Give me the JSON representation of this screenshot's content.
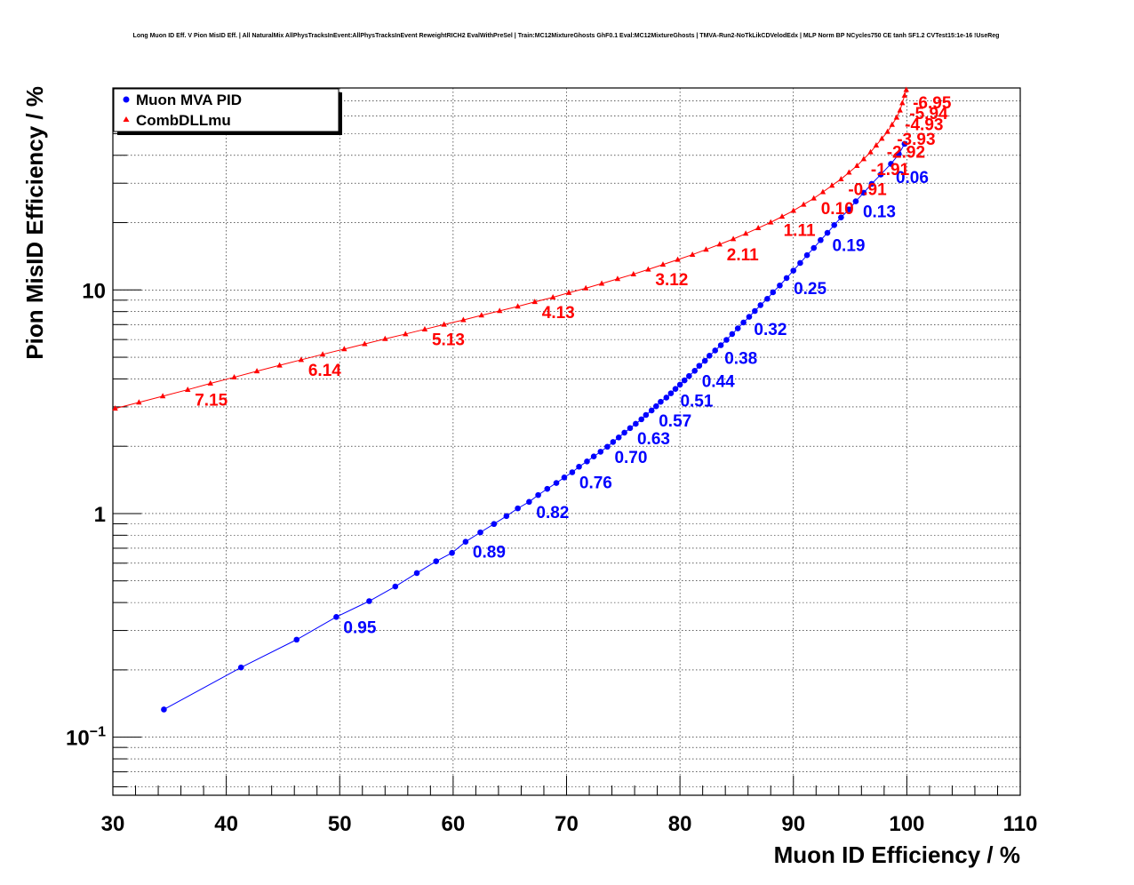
{
  "chart_data": {
    "type": "line",
    "title": "Long Muon ID Eff. V Pion MisID Eff. | All NaturalMix AllPhysTracksInEvent:AllPhysTracksInEvent ReweightRICH2 EvalWithPreSel | Train:MC12MixtureGhosts GhF0.1 Eval:MC12MixtureGhosts | TMVA-Run2-NoTkLikCDVelodEdx | MLP Norm BP NCycles750 CE tanh SF1.2 CVTest15:1e-16 !UseReg",
    "xlabel": "Muon ID Efficiency / %",
    "ylabel": "Pion MisID Efficiency / %",
    "xlim": [
      30,
      110
    ],
    "ylim": [
      0.055,
      80
    ],
    "y_scale": "log",
    "grid": true,
    "legend_position": "top-left",
    "x_ticks": [
      "30",
      "40",
      "50",
      "60",
      "70",
      "80",
      "90",
      "100",
      "110"
    ],
    "y_ticks": [
      {
        "value": 0.1,
        "mantissa": "10",
        "exponent": "−1"
      },
      {
        "value": 1,
        "mantissa": "1",
        "exponent": ""
      },
      {
        "value": 10,
        "mantissa": "10",
        "exponent": ""
      }
    ],
    "series": [
      {
        "name": "Muon MVA PID",
        "color": "#0000ff",
        "marker": "circle",
        "points": [
          [
            34.5,
            0.133
          ],
          [
            41.3,
            0.205
          ],
          [
            46.2,
            0.273
          ],
          [
            49.7,
            0.345
          ],
          [
            52.6,
            0.406
          ],
          [
            54.9,
            0.472
          ],
          [
            56.8,
            0.542
          ],
          [
            58.5,
            0.612
          ],
          [
            59.9,
            0.667
          ],
          [
            61.1,
            0.748
          ],
          [
            62.4,
            0.824
          ],
          [
            63.6,
            0.898
          ],
          [
            64.7,
            0.974
          ],
          [
            65.7,
            1.055
          ],
          [
            66.7,
            1.128
          ],
          [
            67.5,
            1.21
          ],
          [
            68.3,
            1.29
          ],
          [
            69.1,
            1.37
          ],
          [
            69.8,
            1.45
          ],
          [
            70.5,
            1.53
          ],
          [
            71.1,
            1.62
          ],
          [
            71.8,
            1.71
          ],
          [
            72.4,
            1.8
          ],
          [
            73.0,
            1.89
          ],
          [
            73.6,
            1.99
          ],
          [
            74.1,
            2.09
          ],
          [
            74.6,
            2.19
          ],
          [
            75.1,
            2.3
          ],
          [
            75.6,
            2.41
          ],
          [
            76.1,
            2.52
          ],
          [
            76.6,
            2.64
          ],
          [
            77.0,
            2.76
          ],
          [
            77.5,
            2.89
          ],
          [
            77.9,
            3.02
          ],
          [
            78.3,
            3.16
          ],
          [
            78.8,
            3.3
          ],
          [
            79.2,
            3.45
          ],
          [
            79.6,
            3.61
          ],
          [
            80.0,
            3.77
          ],
          [
            80.4,
            3.94
          ],
          [
            80.8,
            4.12
          ],
          [
            81.3,
            4.35
          ],
          [
            81.7,
            4.58
          ],
          [
            82.2,
            4.82
          ],
          [
            82.6,
            5.08
          ],
          [
            83.1,
            5.36
          ],
          [
            83.6,
            5.66
          ],
          [
            84.1,
            5.98
          ],
          [
            84.6,
            6.35
          ],
          [
            85.1,
            6.73
          ],
          [
            85.6,
            7.15
          ],
          [
            86.1,
            7.58
          ],
          [
            86.6,
            8.05
          ],
          [
            87.1,
            8.55
          ],
          [
            87.7,
            9.13
          ],
          [
            88.2,
            9.76
          ],
          [
            88.8,
            10.47
          ],
          [
            89.4,
            11.3
          ],
          [
            90.0,
            12.2
          ],
          [
            90.6,
            13.2
          ],
          [
            91.2,
            14.3
          ],
          [
            91.8,
            15.4
          ],
          [
            92.4,
            16.7
          ],
          [
            93.0,
            18.0
          ],
          [
            93.6,
            19.5
          ],
          [
            94.2,
            21.1
          ],
          [
            94.9,
            22.9
          ],
          [
            95.5,
            24.9
          ],
          [
            96.2,
            27.2
          ],
          [
            96.9,
            29.8
          ],
          [
            97.7,
            32.8
          ],
          [
            98.6,
            36.6
          ],
          [
            99.3,
            40.5
          ],
          [
            99.8,
            45.0
          ]
        ],
        "labels": [
          {
            "text": "0.95",
            "x": 49.7,
            "y": 0.345
          },
          {
            "text": "0.89",
            "x": 61.1,
            "y": 0.748
          },
          {
            "text": "0.82",
            "x": 66.7,
            "y": 1.128
          },
          {
            "text": "0.76",
            "x": 70.5,
            "y": 1.53
          },
          {
            "text": "0.70",
            "x": 73.6,
            "y": 1.99
          },
          {
            "text": "0.63",
            "x": 75.6,
            "y": 2.41
          },
          {
            "text": "0.57",
            "x": 77.5,
            "y": 2.89
          },
          {
            "text": "0.51",
            "x": 79.4,
            "y": 3.55
          },
          {
            "text": "0.44",
            "x": 81.3,
            "y": 4.35
          },
          {
            "text": "0.38",
            "x": 83.3,
            "y": 5.5
          },
          {
            "text": "0.32",
            "x": 85.9,
            "y": 7.4
          },
          {
            "text": "0.25",
            "x": 89.4,
            "y": 11.3
          },
          {
            "text": "0.19",
            "x": 92.8,
            "y": 17.6
          },
          {
            "text": "0.13",
            "x": 95.5,
            "y": 24.9
          },
          {
            "text": "0.06",
            "x": 98.4,
            "y": 35.5
          }
        ]
      },
      {
        "name": "CombDLLmu",
        "color": "#ff0000",
        "marker": "triangle",
        "points": [
          [
            30.2,
            2.95
          ],
          [
            32.3,
            3.14
          ],
          [
            34.4,
            3.35
          ],
          [
            36.6,
            3.58
          ],
          [
            38.6,
            3.82
          ],
          [
            40.7,
            4.07
          ],
          [
            42.7,
            4.33
          ],
          [
            44.7,
            4.6
          ],
          [
            46.6,
            4.87
          ],
          [
            48.5,
            5.15
          ],
          [
            50.4,
            5.44
          ],
          [
            52.2,
            5.73
          ],
          [
            54.0,
            6.04
          ],
          [
            55.8,
            6.35
          ],
          [
            57.5,
            6.67
          ],
          [
            59.2,
            7.0
          ],
          [
            60.9,
            7.34
          ],
          [
            62.5,
            7.7
          ],
          [
            64.1,
            8.06
          ],
          [
            65.7,
            8.44
          ],
          [
            67.2,
            8.84
          ],
          [
            68.8,
            9.27
          ],
          [
            70.2,
            9.71
          ],
          [
            71.7,
            10.18
          ],
          [
            73.1,
            10.68
          ],
          [
            74.5,
            11.2
          ],
          [
            75.9,
            11.76
          ],
          [
            77.2,
            12.35
          ],
          [
            78.5,
            12.98
          ],
          [
            79.8,
            13.65
          ],
          [
            81.1,
            14.38
          ],
          [
            82.3,
            15.16
          ],
          [
            83.5,
            15.99
          ],
          [
            84.7,
            16.89
          ],
          [
            85.8,
            17.86
          ],
          [
            86.9,
            18.91
          ],
          [
            88.0,
            20.05
          ],
          [
            89.0,
            21.28
          ],
          [
            90.0,
            22.62
          ],
          [
            90.9,
            24.08
          ],
          [
            91.8,
            25.67
          ],
          [
            92.6,
            27.4
          ],
          [
            93.4,
            29.3
          ],
          [
            94.2,
            31.3
          ],
          [
            94.9,
            33.5
          ],
          [
            95.6,
            35.9
          ],
          [
            96.2,
            38.5
          ],
          [
            96.8,
            41.3
          ],
          [
            97.3,
            44.3
          ],
          [
            97.8,
            47.5
          ],
          [
            98.3,
            51.0
          ],
          [
            98.7,
            54.8
          ],
          [
            99.1,
            59.0
          ],
          [
            99.4,
            63.5
          ],
          [
            99.6,
            68.5
          ],
          [
            99.8,
            74.0
          ],
          [
            99.95,
            78.5
          ]
        ],
        "labels": [
          {
            "text": "7.15",
            "x": 36.6,
            "y": 3.58
          },
          {
            "text": "6.14",
            "x": 46.6,
            "y": 4.87
          },
          {
            "text": "5.13",
            "x": 57.5,
            "y": 6.67
          },
          {
            "text": "4.13",
            "x": 67.2,
            "y": 8.84
          },
          {
            "text": "3.12",
            "x": 77.2,
            "y": 12.35
          },
          {
            "text": "2.11",
            "x": 83.5,
            "y": 15.99
          },
          {
            "text": "1.11",
            "x": 88.5,
            "y": 20.6
          },
          {
            "text": "0.10",
            "x": 91.8,
            "y": 25.67
          },
          {
            "text": "-0.91",
            "x": 94.2,
            "y": 31.3
          },
          {
            "text": "-1.91",
            "x": 96.2,
            "y": 38.5
          },
          {
            "text": "-2.92",
            "x": 97.6,
            "y": 46.0
          },
          {
            "text": "-3.93",
            "x": 98.5,
            "y": 52.5
          },
          {
            "text": "-4.93",
            "x": 99.2,
            "y": 61.0
          },
          {
            "text": "-5.94",
            "x": 99.6,
            "y": 68.5
          },
          {
            "text": "-6.95",
            "x": 99.9,
            "y": 76.5
          }
        ]
      }
    ]
  }
}
